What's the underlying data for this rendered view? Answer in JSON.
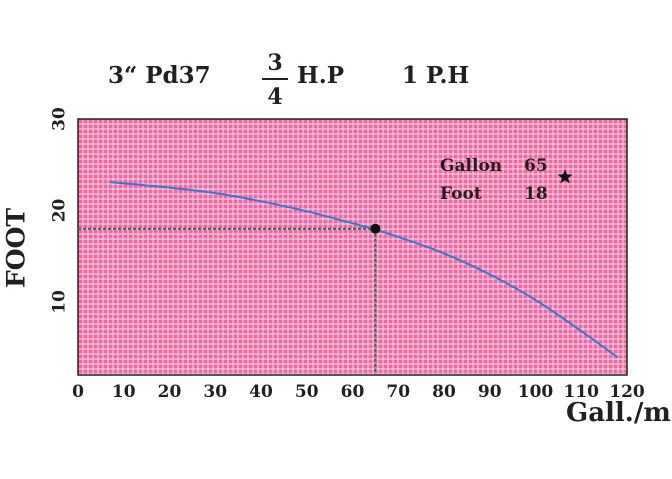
{
  "header": {
    "model": "3“ Pd37",
    "hp_numerator": "3",
    "hp_denominator": "4",
    "hp_unit": "H.P",
    "phase": "1 P.H"
  },
  "colors": {
    "plot_background": "#ec6aa4",
    "grid": "#ffffff",
    "curve": "#3a77c9",
    "text": "#231f20"
  },
  "chart_data": {
    "type": "line",
    "xlabel": "Gall./m",
    "ylabel": "FOOT",
    "xlim": [
      0,
      120
    ],
    "ylim": [
      2,
      30
    ],
    "xticks": [
      0,
      10,
      20,
      30,
      40,
      50,
      60,
      70,
      80,
      90,
      100,
      110,
      120
    ],
    "yticks": [
      10,
      20,
      30
    ],
    "grid": true,
    "series": [
      {
        "x": [
          7,
          20,
          30,
          40,
          50,
          60,
          65,
          70,
          80,
          90,
          100,
          110,
          118
        ],
        "y": [
          23.1,
          22.5,
          21.9,
          21.0,
          19.9,
          18.6,
          17.9,
          17.1,
          15.3,
          13.0,
          10.2,
          6.8,
          3.9
        ]
      }
    ],
    "operating_point": {
      "x": 65,
      "y": 18
    },
    "annotation": {
      "rows": [
        {
          "label": "Gallon",
          "value": "65"
        },
        {
          "label": "Foot",
          "value": "18"
        }
      ],
      "marker": "star"
    }
  }
}
